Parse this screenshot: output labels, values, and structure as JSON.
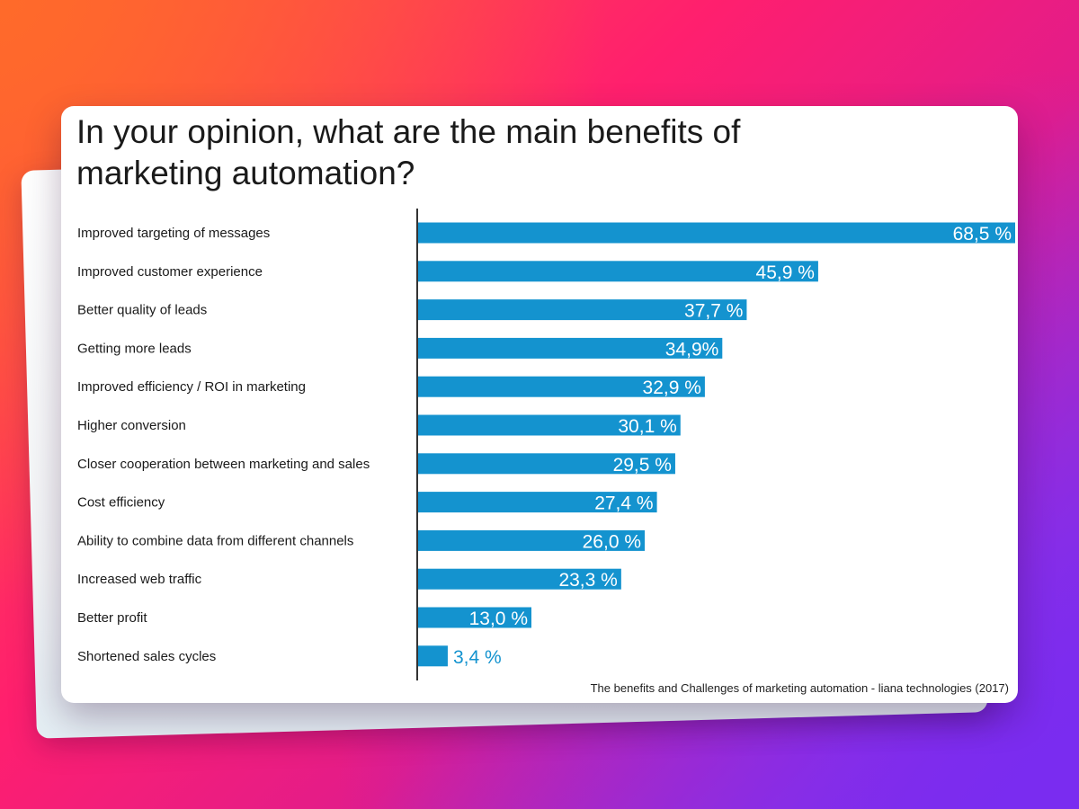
{
  "chart_data": {
    "type": "bar",
    "orientation": "horizontal",
    "title": "In your opinion, what are the main benefits of marketing automation?",
    "categories": [
      "Improved targeting of messages",
      "Improved customer experience",
      "Better quality of leads",
      "Getting more leads",
      "Improved efficiency / ROI in marketing",
      "Higher conversion",
      "Closer cooperation between marketing and sales",
      "Cost efficiency",
      "Ability to combine data from different channels",
      "Increased web traffic",
      "Better profit",
      "Shortened sales cycles"
    ],
    "values": [
      68.5,
      45.9,
      37.7,
      34.9,
      32.9,
      30.1,
      29.5,
      27.4,
      26.0,
      23.3,
      13.0,
      3.4
    ],
    "value_labels": [
      "68,5 %",
      "45,9 %",
      "37,7 %",
      "34,9%",
      "32,9 %",
      "30,1 %",
      "29,5 %",
      "27,4 %",
      "26,0 %",
      "23,3 %",
      "13,0 %",
      "3,4 %"
    ],
    "xlim": [
      0,
      68.5
    ],
    "xlabel": "",
    "ylabel": "",
    "grid": false,
    "bar_color": "#1493cf",
    "source": "The benefits and Challenges of marketing automation - liana technologies (2017)"
  },
  "colors": {
    "bar": "#1493cf",
    "label_inside": "#ffffff",
    "label_outside": "#1493cf",
    "category_text": "#1a1a1a"
  }
}
